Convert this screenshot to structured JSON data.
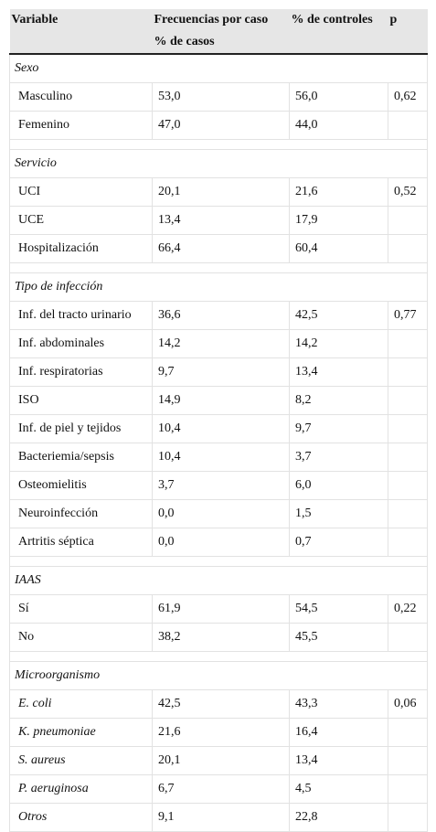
{
  "table": {
    "header": {
      "variable": "Variable",
      "cases": [
        "Frecuencias por caso",
        "% de casos"
      ],
      "controls": "% de controles",
      "p": "p"
    },
    "sections": [
      {
        "title": "Sexo",
        "rows": [
          [
            "Masculino",
            "53,0",
            "56,0",
            "0,62"
          ],
          [
            "Femenino",
            "47,0",
            "44,0"
          ]
        ]
      },
      {
        "title": "Servicio",
        "rows": [
          [
            "UCI",
            "20,1",
            "21,6",
            "0,52"
          ],
          [
            "UCE",
            "13,4",
            "17,9"
          ],
          [
            "Hospitalización",
            "66,4",
            "60,4"
          ]
        ]
      },
      {
        "title": "Tipo de infección",
        "rows": [
          [
            "Inf. del tracto urinario",
            "36,6",
            "42,5",
            "0,77"
          ],
          [
            "Inf. abdominales",
            "14,2",
            "14,2"
          ],
          [
            "Inf. respiratorias",
            "9,7",
            "13,4"
          ],
          [
            "ISO",
            "14,9",
            "8,2"
          ],
          [
            "Inf. de piel y tejidos",
            "10,4",
            "9,7"
          ],
          [
            "Bacteriemia/sepsis",
            "10,4",
            "3,7"
          ],
          [
            "Osteomielitis",
            "3,7",
            "6,0"
          ],
          [
            "Neuroinfección",
            "0,0",
            "1,5"
          ],
          [
            "Artritis séptica",
            "0,0",
            "0,7"
          ]
        ]
      },
      {
        "title": "IAAS",
        "rows": [
          [
            "Sí",
            "61,9",
            "54,5",
            "0,22"
          ],
          [
            "No",
            "38,2",
            "45,5"
          ]
        ]
      },
      {
        "title": "Microorganismo",
        "italic_labels": true,
        "rows": [
          [
            "E. coli",
            "42,5",
            "43,3",
            "0,06"
          ],
          [
            "K. pneumoniae",
            "21,6",
            "16,4"
          ],
          [
            "S. aureus",
            "20,1",
            "13,4"
          ],
          [
            "P. aeruginosa",
            "6,7",
            "4,5"
          ],
          [
            "Otros",
            "9,1",
            "22,8"
          ]
        ]
      }
    ]
  }
}
